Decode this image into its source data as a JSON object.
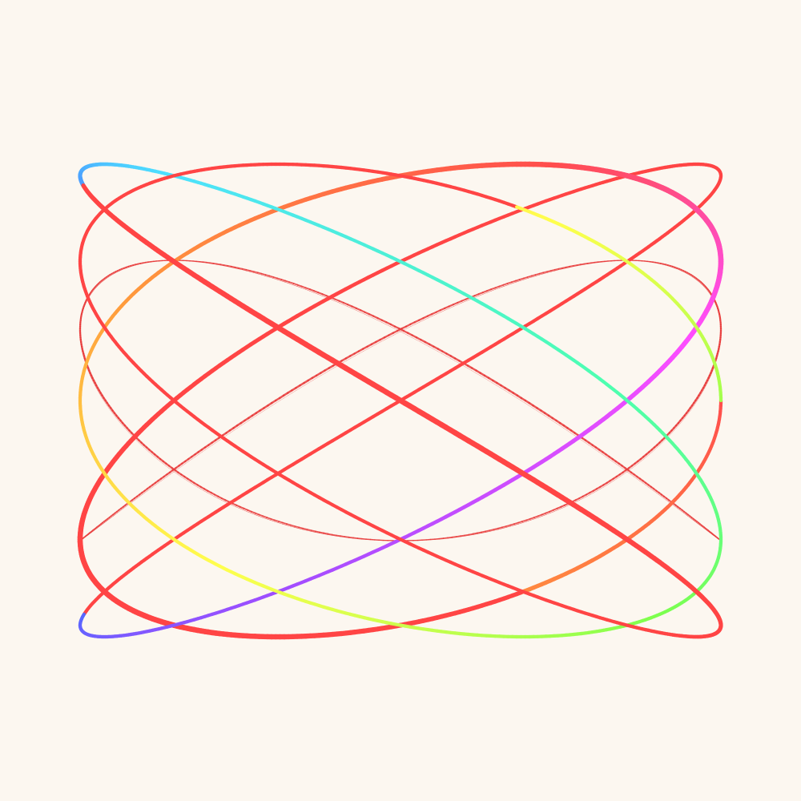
{
  "artwork": {
    "kind": "lissajous-curve-composition",
    "background_color": "#fcf7f0",
    "main_curve": {
      "name": "rainbow-harmonograph",
      "gradient_colors": [
        "#ff4d4d",
        "#ff9a3c",
        "#ffff4d",
        "#7dff4d",
        "#4dffb0",
        "#4de0ff",
        "#4d6bff",
        "#a04dff",
        "#ff4dff",
        "#ff4d4d"
      ]
    },
    "secondary_curve": {
      "name": "thin-red-tracer",
      "color": "#e83a3a"
    }
  }
}
